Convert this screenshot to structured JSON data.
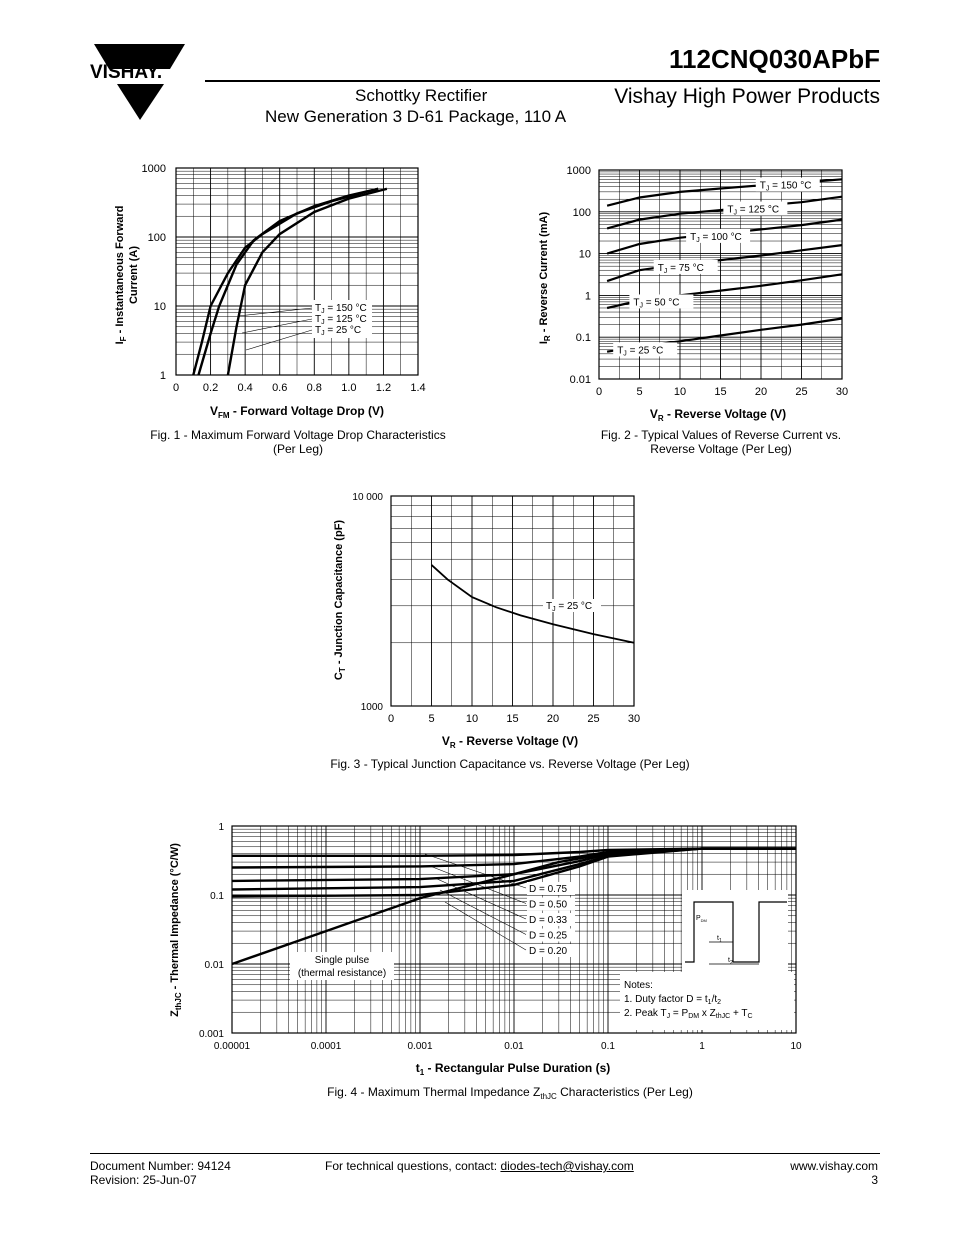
{
  "header": {
    "logo_text": "VISHAY.",
    "part_number": "112CNQ030APbF",
    "subtitle_line1": "Schottky Rectifier",
    "subtitle_line2": "New Generation 3 D-61 Package, 110 A",
    "brand_line": "Vishay High Power Products"
  },
  "footer": {
    "doc_number": "Document Number: 94124",
    "revision": "Revision: 25-Jun-07",
    "contact_prefix": "For technical questions, contact: ",
    "contact_email": "diodes-tech@vishay.com",
    "website": "www.vishay.com",
    "page_number": "3"
  },
  "chart_data": [
    {
      "id": "fig1",
      "type": "line",
      "caption_line1": "Fig. 1 - Maximum Forward Voltage Drop Characteristics",
      "caption_line2": "(Per Leg)",
      "xlabel_main": "V",
      "xlabel_sub": "FM",
      "xlabel_rest": " - Forward Voltage Drop (V)",
      "ylabel_main": "I",
      "ylabel_sub": "F",
      "ylabel_rest": " - Instantaneous Forward",
      "ylabel_line2": "Current (A)",
      "xlim": [
        0,
        1.4
      ],
      "ylim": [
        1,
        1000
      ],
      "yscale": "log",
      "x_ticks": [
        "0",
        "0.2",
        "0.4",
        "0.6",
        "0.8",
        "1.0",
        "1.2",
        "1.4"
      ],
      "y_ticks": [
        "1",
        "10",
        "100",
        "1000"
      ],
      "grid": true,
      "legend": [
        {
          "main": "T",
          "sub": "J",
          "rest": " = 150 °C"
        },
        {
          "main": "T",
          "sub": "J",
          "rest": " = 125 °C"
        },
        {
          "main": "T",
          "sub": "J",
          "rest": " = 25 °C"
        }
      ],
      "series": [
        {
          "points": [
            [
              0.1,
              1
            ],
            [
              0.15,
              3
            ],
            [
              0.2,
              10
            ],
            [
              0.3,
              30
            ],
            [
              0.4,
              70
            ],
            [
              0.5,
              110
            ],
            [
              0.7,
              220
            ],
            [
              0.9,
              330
            ],
            [
              1.1,
              450
            ],
            [
              1.17,
              500
            ]
          ]
        },
        {
          "points": [
            [
              0.13,
              1
            ],
            [
              0.2,
              4
            ],
            [
              0.25,
              10
            ],
            [
              0.35,
              40
            ],
            [
              0.45,
              90
            ],
            [
              0.6,
              170
            ],
            [
              0.8,
              280
            ],
            [
              1.0,
              400
            ],
            [
              1.17,
              500
            ]
          ]
        },
        {
          "points": [
            [
              0.3,
              1
            ],
            [
              0.35,
              5
            ],
            [
              0.4,
              20
            ],
            [
              0.5,
              60
            ],
            [
              0.6,
              110
            ],
            [
              0.8,
              230
            ],
            [
              1.0,
              360
            ],
            [
              1.22,
              500
            ]
          ]
        }
      ]
    },
    {
      "id": "fig2",
      "type": "line",
      "caption_line1": "Fig. 2 - Typical Values of Reverse Current vs.",
      "caption_line2": "Reverse Voltage (Per Leg)",
      "xlabel_main": "V",
      "xlabel_sub": "R",
      "xlabel_rest": " - Reverse Voltage (V)",
      "ylabel_main": "I",
      "ylabel_sub": "R",
      "ylabel_rest": " - Reverse Current (mA)",
      "xlim": [
        0,
        30
      ],
      "ylim": [
        0.01,
        1000
      ],
      "yscale": "log",
      "x_ticks": [
        "0",
        "5",
        "10",
        "15",
        "20",
        "25",
        "30"
      ],
      "y_ticks": [
        "0.01",
        "0.1",
        "1",
        "10",
        "100",
        "1000"
      ],
      "grid": true,
      "series": [
        {
          "label_main": "T",
          "label_sub": "J",
          "label_rest": " = 150 °C",
          "label_x": 19.6,
          "points": [
            [
              1,
              140
            ],
            [
              5,
              220
            ],
            [
              10,
              300
            ],
            [
              15,
              360
            ],
            [
              20,
              430
            ],
            [
              25,
              500
            ],
            [
              30,
              600
            ]
          ]
        },
        {
          "label_main": "T",
          "label_sub": "J",
          "label_rest": " = 125 °C",
          "label_x": 15.6,
          "points": [
            [
              1,
              40
            ],
            [
              5,
              65
            ],
            [
              10,
              90
            ],
            [
              15,
              110
            ],
            [
              20,
              140
            ],
            [
              25,
              170
            ],
            [
              30,
              230
            ]
          ]
        },
        {
          "label_main": "T",
          "label_sub": "J",
          "label_rest": " = 100 °C",
          "label_x": 11,
          "points": [
            [
              1,
              10
            ],
            [
              5,
              17
            ],
            [
              10,
              24
            ],
            [
              15,
              30
            ],
            [
              20,
              38
            ],
            [
              25,
              48
            ],
            [
              30,
              65
            ]
          ]
        },
        {
          "label_main": "T",
          "label_sub": "J",
          "label_rest": " = 75 °C",
          "label_x": 7,
          "points": [
            [
              1,
              2.2
            ],
            [
              5,
              4
            ],
            [
              10,
              5.5
            ],
            [
              15,
              7
            ],
            [
              20,
              9
            ],
            [
              25,
              12
            ],
            [
              30,
              16
            ]
          ]
        },
        {
          "label_main": "T",
          "label_sub": "J",
          "label_rest": " = 50 °C",
          "label_x": 4,
          "points": [
            [
              1,
              0.5
            ],
            [
              5,
              0.75
            ],
            [
              10,
              1.0
            ],
            [
              15,
              1.3
            ],
            [
              20,
              1.7
            ],
            [
              25,
              2.3
            ],
            [
              30,
              3.2
            ]
          ]
        },
        {
          "label_main": "T",
          "label_sub": "J",
          "label_rest": " = 25 °C",
          "label_x": 2,
          "points": [
            [
              1,
              0.045
            ],
            [
              5,
              0.06
            ],
            [
              10,
              0.08
            ],
            [
              15,
              0.11
            ],
            [
              20,
              0.15
            ],
            [
              25,
              0.2
            ],
            [
              30,
              0.28
            ]
          ]
        }
      ]
    },
    {
      "id": "fig3",
      "type": "line",
      "caption_line1": "Fig. 3 - Typical Junction Capacitance vs. Reverse Voltage (Per Leg)",
      "xlabel_main": "V",
      "xlabel_sub": "R",
      "xlabel_rest": " - Reverse Voltage (V)",
      "ylabel_main": "C",
      "ylabel_sub": "T",
      "ylabel_rest": " - Junction Capacitance (pF)",
      "xlim": [
        0,
        30
      ],
      "ylim": [
        1000,
        10000
      ],
      "yscale": "log",
      "x_ticks": [
        "0",
        "5",
        "10",
        "15",
        "20",
        "25",
        "30"
      ],
      "y_ticks": [
        "1000",
        "10 000"
      ],
      "grid": true,
      "series": [
        {
          "label_main": "T",
          "label_sub": "J",
          "label_rest": " = 25 °C",
          "points": [
            [
              5,
              4700
            ],
            [
              7,
              4000
            ],
            [
              10,
              3300
            ],
            [
              13,
              2950
            ],
            [
              16,
              2700
            ],
            [
              20,
              2450
            ],
            [
              25,
              2200
            ],
            [
              30,
              2000
            ]
          ]
        }
      ]
    },
    {
      "id": "fig4",
      "type": "line",
      "caption_main": "Fig. 4 - Maximum Thermal Impedance Z",
      "caption_sub": "thJC",
      "caption_rest": " Characteristics (Per Leg)",
      "xlabel_main": "t",
      "xlabel_sub": "1",
      "xlabel_rest": " - Rectangular Pulse Duration (s)",
      "ylabel_main": "Z",
      "ylabel_sub": "thJC",
      "ylabel_rest": " - Thermal Impedance (°C/W)",
      "xlim": [
        1e-05,
        10
      ],
      "ylim": [
        0.001,
        1
      ],
      "xscale": "log",
      "yscale": "log",
      "x_ticks": [
        "0.00001",
        "0.0001",
        "0.001",
        "0.01",
        "0.1",
        "1",
        "10"
      ],
      "y_ticks": [
        "0.001",
        "0.01",
        "0.1",
        "1"
      ],
      "grid": true,
      "series": [
        {
          "label": "D = 0.75",
          "points": [
            [
              1e-05,
              0.37
            ],
            [
              0.001,
              0.37
            ],
            [
              0.01,
              0.38
            ],
            [
              0.05,
              0.42
            ],
            [
              0.1,
              0.45
            ],
            [
              1,
              0.47
            ],
            [
              10,
              0.47
            ]
          ]
        },
        {
          "label": "D = 0.50",
          "points": [
            [
              1e-05,
              0.25
            ],
            [
              0.001,
              0.26
            ],
            [
              0.01,
              0.28
            ],
            [
              0.05,
              0.36
            ],
            [
              0.1,
              0.42
            ],
            [
              1,
              0.47
            ],
            [
              10,
              0.47
            ]
          ]
        },
        {
          "label": "D = 0.33",
          "points": [
            [
              1e-05,
              0.16
            ],
            [
              0.001,
              0.17
            ],
            [
              0.01,
              0.2
            ],
            [
              0.05,
              0.31
            ],
            [
              0.1,
              0.39
            ],
            [
              1,
              0.47
            ],
            [
              10,
              0.47
            ]
          ]
        },
        {
          "label": "D = 0.25",
          "points": [
            [
              1e-05,
              0.12
            ],
            [
              0.001,
              0.13
            ],
            [
              0.01,
              0.16
            ],
            [
              0.05,
              0.28
            ],
            [
              0.1,
              0.37
            ],
            [
              1,
              0.47
            ],
            [
              10,
              0.47
            ]
          ]
        },
        {
          "label": "D = 0.20",
          "points": [
            [
              1e-05,
              0.095
            ],
            [
              0.001,
              0.1
            ],
            [
              0.01,
              0.14
            ],
            [
              0.05,
              0.26
            ],
            [
              0.1,
              0.36
            ],
            [
              1,
              0.47
            ],
            [
              10,
              0.47
            ]
          ]
        },
        {
          "label": "Single pulse",
          "points": [
            [
              1e-05,
              0.01
            ],
            [
              0.0001,
              0.03
            ],
            [
              0.001,
              0.09
            ],
            [
              0.01,
              0.2
            ],
            [
              0.03,
              0.3
            ],
            [
              0.1,
              0.4
            ],
            [
              1,
              0.47
            ],
            [
              10,
              0.47
            ]
          ]
        }
      ],
      "single_pulse_line1": "Single pulse",
      "single_pulse_line2": "(thermal resistance)",
      "notes_title": "Notes:",
      "note1": {
        "a": "1. Duty factor D = t",
        "s1": "1",
        "b": "/t",
        "s2": "2"
      },
      "note2": {
        "a": "2. Peak T",
        "s1": "J",
        "b": " = P",
        "s2": "DM",
        "c": " x Z",
        "s3": "thJC",
        "d": " + T",
        "s4": "C"
      },
      "inset": {
        "pdm_main": "P",
        "pdm_sub": "DM",
        "t1_main": "t",
        "t1_sub": "1",
        "t2_main": "t",
        "t2_sub": "2"
      }
    }
  ]
}
